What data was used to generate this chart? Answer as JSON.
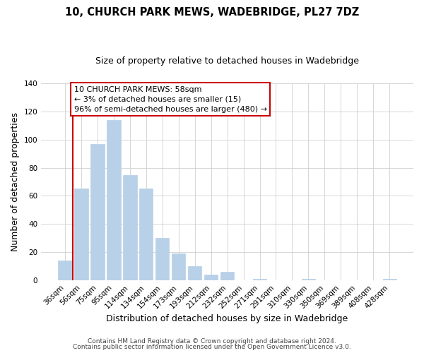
{
  "title": "10, CHURCH PARK MEWS, WADEBRIDGE, PL27 7DZ",
  "subtitle": "Size of property relative to detached houses in Wadebridge",
  "xlabel": "Distribution of detached houses by size in Wadebridge",
  "ylabel": "Number of detached properties",
  "bar_labels": [
    "36sqm",
    "56sqm",
    "75sqm",
    "95sqm",
    "114sqm",
    "134sqm",
    "154sqm",
    "173sqm",
    "193sqm",
    "212sqm",
    "232sqm",
    "252sqm",
    "271sqm",
    "291sqm",
    "310sqm",
    "330sqm",
    "350sqm",
    "369sqm",
    "389sqm",
    "408sqm",
    "428sqm"
  ],
  "bar_values": [
    14,
    65,
    97,
    114,
    75,
    65,
    30,
    19,
    10,
    4,
    6,
    0,
    1,
    0,
    0,
    1,
    0,
    0,
    0,
    0,
    1
  ],
  "bar_color": "#b8d0e8",
  "bar_edge_color": "#b8d0e8",
  "ylim": [
    0,
    140
  ],
  "yticks": [
    0,
    20,
    40,
    60,
    80,
    100,
    120,
    140
  ],
  "vline_color": "#cc0000",
  "vline_bar_index": 1,
  "annotation_line1": "10 CHURCH PARK MEWS: 58sqm",
  "annotation_line2": "← 3% of detached houses are smaller (15)",
  "annotation_line3": "96% of semi-detached houses are larger (480) →",
  "footer_line1": "Contains HM Land Registry data © Crown copyright and database right 2024.",
  "footer_line2": "Contains public sector information licensed under the Open Government Licence v3.0.",
  "bg_color": "#ffffff",
  "grid_color": "#d0d0d0",
  "title_fontsize": 10.5,
  "subtitle_fontsize": 9,
  "axis_label_fontsize": 9,
  "tick_fontsize": 7.5,
  "annotation_fontsize": 8,
  "footer_fontsize": 6.5
}
